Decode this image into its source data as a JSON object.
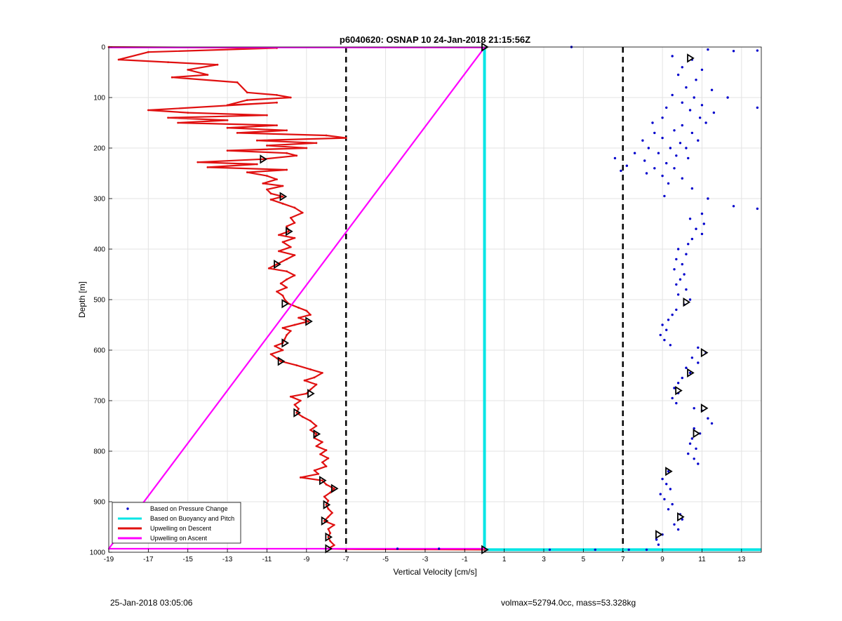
{
  "chart_data": {
    "type": "scatter",
    "title": "p6040620: OSNAP 10 24-Jan-2018 21:15:56Z",
    "xlabel": "Vertical Velocity [cm/s]",
    "ylabel": "Depth [m]",
    "xlim": [
      -19,
      14
    ],
    "ylim": [
      1000,
      0
    ],
    "y_reversed": true,
    "grid": true,
    "x_ticks": [
      -19,
      -17,
      -15,
      -13,
      -11,
      -9,
      -7,
      -5,
      -3,
      -1,
      1,
      3,
      5,
      7,
      9,
      11,
      13
    ],
    "y_ticks": [
      0,
      100,
      200,
      300,
      400,
      500,
      600,
      700,
      800,
      900,
      1000
    ],
    "threshold_lines_x": [
      -7,
      7
    ],
    "legend_position": "bottom-left",
    "series": [
      {
        "name": "Based on Pressure Change",
        "style": "dots",
        "color": "#0000cc",
        "points": [
          [
            4.4,
            0
          ],
          [
            13.8,
            7
          ],
          [
            12.6,
            8
          ],
          [
            11.3,
            5
          ],
          [
            10.5,
            25
          ],
          [
            9.5,
            18
          ],
          [
            10.0,
            40
          ],
          [
            11.0,
            45
          ],
          [
            9.8,
            55
          ],
          [
            10.7,
            65
          ],
          [
            10.2,
            80
          ],
          [
            11.5,
            85
          ],
          [
            9.5,
            95
          ],
          [
            10.6,
            100
          ],
          [
            12.3,
            100
          ],
          [
            10.0,
            110
          ],
          [
            11.0,
            115
          ],
          [
            9.2,
            120
          ],
          [
            10.4,
            125
          ],
          [
            13.8,
            120
          ],
          [
            11.6,
            130
          ],
          [
            9.0,
            140
          ],
          [
            10.9,
            140
          ],
          [
            8.5,
            150
          ],
          [
            10.0,
            155
          ],
          [
            11.2,
            150
          ],
          [
            9.6,
            165
          ],
          [
            8.6,
            170
          ],
          [
            10.5,
            170
          ],
          [
            9.0,
            180
          ],
          [
            8.0,
            185
          ],
          [
            9.9,
            190
          ],
          [
            10.8,
            185
          ],
          [
            8.3,
            200
          ],
          [
            9.4,
            200
          ],
          [
            10.2,
            200
          ],
          [
            7.6,
            210
          ],
          [
            8.8,
            210
          ],
          [
            9.7,
            215
          ],
          [
            6.6,
            220
          ],
          [
            8.1,
            225
          ],
          [
            9.2,
            230
          ],
          [
            10.3,
            220
          ],
          [
            7.2,
            235
          ],
          [
            8.6,
            240
          ],
          [
            9.6,
            240
          ],
          [
            6.9,
            245
          ],
          [
            8.2,
            250
          ],
          [
            9.0,
            255
          ],
          [
            10.0,
            260
          ],
          [
            9.3,
            270
          ],
          [
            10.5,
            280
          ],
          [
            9.1,
            295
          ],
          [
            11.3,
            300
          ],
          [
            12.6,
            315
          ],
          [
            13.8,
            320
          ],
          [
            11.0,
            330
          ],
          [
            10.4,
            340
          ],
          [
            11.1,
            350
          ],
          [
            10.7,
            360
          ],
          [
            11.0,
            370
          ],
          [
            10.5,
            380
          ],
          [
            10.3,
            390
          ],
          [
            9.8,
            400
          ],
          [
            10.2,
            410
          ],
          [
            9.7,
            420
          ],
          [
            10.0,
            430
          ],
          [
            9.6,
            440
          ],
          [
            10.1,
            450
          ],
          [
            9.9,
            460
          ],
          [
            9.7,
            470
          ],
          [
            10.2,
            480
          ],
          [
            9.8,
            490
          ],
          [
            10.4,
            500
          ],
          [
            10.1,
            510
          ],
          [
            9.7,
            520
          ],
          [
            9.5,
            530
          ],
          [
            9.3,
            540
          ],
          [
            9.0,
            550
          ],
          [
            9.2,
            560
          ],
          [
            8.9,
            570
          ],
          [
            9.1,
            580
          ],
          [
            9.4,
            590
          ],
          [
            10.8,
            595
          ],
          [
            11.2,
            605
          ],
          [
            10.5,
            615
          ],
          [
            10.8,
            625
          ],
          [
            10.2,
            635
          ],
          [
            10.4,
            645
          ],
          [
            10.0,
            655
          ],
          [
            9.8,
            665
          ],
          [
            9.6,
            675
          ],
          [
            9.8,
            685
          ],
          [
            9.5,
            695
          ],
          [
            9.7,
            705
          ],
          [
            10.6,
            715
          ],
          [
            11.0,
            720
          ],
          [
            11.3,
            735
          ],
          [
            11.5,
            745
          ],
          [
            10.6,
            755
          ],
          [
            10.9,
            765
          ],
          [
            10.5,
            775
          ],
          [
            10.4,
            785
          ],
          [
            10.7,
            795
          ],
          [
            10.3,
            805
          ],
          [
            10.6,
            815
          ],
          [
            10.8,
            825
          ],
          [
            9.3,
            840
          ],
          [
            9.0,
            855
          ],
          [
            9.2,
            865
          ],
          [
            9.4,
            875
          ],
          [
            8.9,
            885
          ],
          [
            9.1,
            895
          ],
          [
            9.5,
            905
          ],
          [
            9.3,
            915
          ],
          [
            9.9,
            925
          ],
          [
            10.0,
            935
          ],
          [
            9.6,
            945
          ],
          [
            9.8,
            955
          ],
          [
            9.0,
            965
          ],
          [
            8.7,
            975
          ],
          [
            8.8,
            985
          ],
          [
            8.2,
            995
          ],
          [
            7.3,
            995
          ],
          [
            5.6,
            995
          ],
          [
            3.3,
            995
          ],
          [
            -2.3,
            993
          ],
          [
            -4.4,
            993
          ]
        ]
      },
      {
        "name": "Based on Buoyancy and Pitch",
        "style": "line",
        "color": "#00e5e5",
        "points": [
          [
            0,
            0
          ],
          [
            0,
            995
          ],
          [
            14,
            995
          ]
        ]
      },
      {
        "name": "Upwelling on Descent",
        "style": "line",
        "color": "#e01010",
        "points": [
          [
            -19,
            0
          ],
          [
            -10.5,
            2
          ],
          [
            -17.0,
            10
          ],
          [
            -18.5,
            25
          ],
          [
            -16.0,
            30
          ],
          [
            -13.5,
            35
          ],
          [
            -15.0,
            45
          ],
          [
            -14.0,
            55
          ],
          [
            -15.8,
            60
          ],
          [
            -12.5,
            70
          ],
          [
            -12.0,
            90
          ],
          [
            -10.5,
            95
          ],
          [
            -9.8,
            100
          ],
          [
            -12.0,
            105
          ],
          [
            -13.0,
            115
          ],
          [
            -10.5,
            110
          ],
          [
            -17.0,
            125
          ],
          [
            -15.0,
            130
          ],
          [
            -11.0,
            135
          ],
          [
            -16.0,
            140
          ],
          [
            -13.0,
            145
          ],
          [
            -15.5,
            150
          ],
          [
            -10.5,
            155
          ],
          [
            -13.0,
            160
          ],
          [
            -10.0,
            165
          ],
          [
            -12.5,
            170
          ],
          [
            -8.0,
            175
          ],
          [
            -7.0,
            180
          ],
          [
            -11.5,
            185
          ],
          [
            -8.5,
            190
          ],
          [
            -11.0,
            195
          ],
          [
            -9.0,
            200
          ],
          [
            -13.0,
            205
          ],
          [
            -10.0,
            210
          ],
          [
            -9.5,
            215
          ],
          [
            -11.2,
            222
          ],
          [
            -14.5,
            228
          ],
          [
            -11.5,
            232
          ],
          [
            -14.0,
            238
          ],
          [
            -10.0,
            243
          ],
          [
            -12.0,
            248
          ],
          [
            -11.0,
            255
          ],
          [
            -10.5,
            262
          ],
          [
            -11.2,
            270
          ],
          [
            -10.2,
            275
          ],
          [
            -11.0,
            282
          ],
          [
            -10.8,
            290
          ],
          [
            -10.2,
            296
          ],
          [
            -10.8,
            302
          ],
          [
            -10.2,
            310
          ],
          [
            -9.6,
            318
          ],
          [
            -9.2,
            328
          ],
          [
            -9.8,
            338
          ],
          [
            -9.6,
            348
          ],
          [
            -10.0,
            355
          ],
          [
            -9.9,
            365
          ],
          [
            -10.4,
            372
          ],
          [
            -9.6,
            378
          ],
          [
            -10.2,
            386
          ],
          [
            -9.8,
            396
          ],
          [
            -10.4,
            404
          ],
          [
            -9.6,
            412
          ],
          [
            -10.0,
            420
          ],
          [
            -10.5,
            430
          ],
          [
            -10.9,
            438
          ],
          [
            -10.0,
            444
          ],
          [
            -9.6,
            452
          ],
          [
            -10.0,
            460
          ],
          [
            -10.3,
            468
          ],
          [
            -10.0,
            476
          ],
          [
            -10.5,
            484
          ],
          [
            -10.2,
            492
          ],
          [
            -10.1,
            500
          ],
          [
            -9.9,
            508
          ],
          [
            -9.4,
            516
          ],
          [
            -9.0,
            522
          ],
          [
            -8.8,
            530
          ],
          [
            -9.4,
            536
          ],
          [
            -8.9,
            543
          ],
          [
            -9.6,
            550
          ],
          [
            -10.2,
            556
          ],
          [
            -9.8,
            562
          ],
          [
            -10.0,
            570
          ],
          [
            -10.1,
            578
          ],
          [
            -10.2,
            586
          ],
          [
            -10.6,
            592
          ],
          [
            -10.2,
            600
          ],
          [
            -10.8,
            608
          ],
          [
            -10.5,
            616
          ],
          [
            -10.3,
            622
          ],
          [
            -9.5,
            630
          ],
          [
            -8.8,
            638
          ],
          [
            -8.2,
            645
          ],
          [
            -8.6,
            654
          ],
          [
            -9.1,
            660
          ],
          [
            -8.5,
            668
          ],
          [
            -8.8,
            678
          ],
          [
            -9.0,
            686
          ],
          [
            -9.8,
            692
          ],
          [
            -9.3,
            700
          ],
          [
            -9.6,
            708
          ],
          [
            -9.4,
            716
          ],
          [
            -9.5,
            724
          ],
          [
            -9.2,
            732
          ],
          [
            -8.8,
            740
          ],
          [
            -8.5,
            750
          ],
          [
            -8.8,
            758
          ],
          [
            -8.5,
            766
          ],
          [
            -8.6,
            774
          ],
          [
            -8.2,
            782
          ],
          [
            -8.5,
            790
          ],
          [
            -8.0,
            798
          ],
          [
            -8.3,
            806
          ],
          [
            -7.9,
            814
          ],
          [
            -8.2,
            822
          ],
          [
            -8.0,
            830
          ],
          [
            -8.6,
            838
          ],
          [
            -8.4,
            845
          ],
          [
            -9.3,
            852
          ],
          [
            -8.2,
            858
          ],
          [
            -8.0,
            866
          ],
          [
            -7.6,
            874
          ],
          [
            -7.8,
            882
          ],
          [
            -8.1,
            890
          ],
          [
            -7.9,
            898
          ],
          [
            -8.0,
            906
          ],
          [
            -7.9,
            914
          ],
          [
            -7.7,
            922
          ],
          [
            -7.9,
            930
          ],
          [
            -8.1,
            938
          ],
          [
            -7.6,
            946
          ],
          [
            -7.9,
            954
          ],
          [
            -7.8,
            962
          ],
          [
            -7.9,
            970
          ],
          [
            -7.8,
            978
          ],
          [
            -7.6,
            986
          ],
          [
            -7.9,
            993
          ],
          [
            -7.0,
            994
          ],
          [
            0,
            995
          ]
        ]
      },
      {
        "name": "Upwelling on Ascent",
        "style": "line",
        "color": "#ff00ff",
        "points": [
          [
            -19,
            1
          ],
          [
            0,
            1
          ],
          [
            -19,
            993
          ],
          [
            0,
            993
          ]
        ]
      }
    ],
    "markers": {
      "style": "open-triangle",
      "color": "#000000",
      "points": [
        [
          0,
          0
        ],
        [
          10.4,
          22
        ],
        [
          -11.2,
          222
        ],
        [
          -10.2,
          296
        ],
        [
          -9.9,
          365
        ],
        [
          -10.5,
          430
        ],
        [
          -10.1,
          508
        ],
        [
          -8.9,
          543
        ],
        [
          -10.1,
          586
        ],
        [
          -10.3,
          622
        ],
        [
          -8.8,
          686
        ],
        [
          -9.5,
          724
        ],
        [
          -8.5,
          766
        ],
        [
          -8.2,
          858
        ],
        [
          -7.6,
          874
        ],
        [
          -8.0,
          906
        ],
        [
          -8.1,
          938
        ],
        [
          -7.9,
          970
        ],
        [
          -7.9,
          993
        ],
        [
          0,
          995
        ],
        [
          10.2,
          505
        ],
        [
          11.1,
          605
        ],
        [
          10.4,
          645
        ],
        [
          9.8,
          680
        ],
        [
          11.1,
          715
        ],
        [
          10.7,
          765
        ],
        [
          9.3,
          840
        ],
        [
          9.9,
          930
        ],
        [
          8.8,
          965
        ]
      ]
    }
  },
  "footer": {
    "timestamp": "25-Jan-2018 03:05:06",
    "summary": "volmax=52794.0cc, mass=53.328kg"
  }
}
